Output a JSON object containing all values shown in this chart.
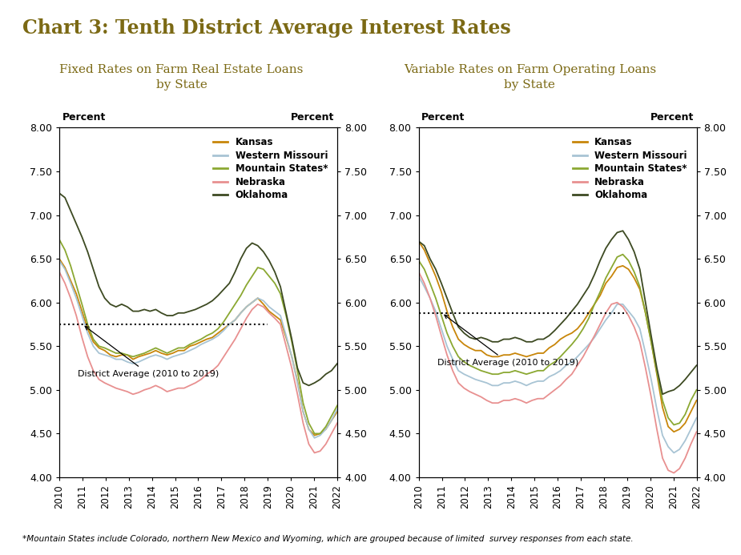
{
  "title": "Chart 3: Tenth District Average Interest Rates",
  "title_color": "#7B6914",
  "subtitle_left": "Fixed Rates on Farm Real Estate Loans\nby State",
  "subtitle_right": "Variable Rates on Farm Operating Loans\nby State",
  "subtitle_color": "#7B6914",
  "footnote": "*Mountain States include Colorado, northern New Mexico and Wyoming, which are grouped because of limited  survey responses from each state.",
  "legend_labels": [
    "Kansas",
    "Western Missouri",
    "Mountain States*",
    "Nebraska",
    "Oklahoma"
  ],
  "line_colors": [
    "#C8860A",
    "#A8C4D4",
    "#8BA832",
    "#E89090",
    "#3D4A22"
  ],
  "district_avg_color": "#000000",
  "ylim": [
    4.0,
    8.0
  ],
  "yticks": [
    4.0,
    4.5,
    5.0,
    5.5,
    6.0,
    6.5,
    7.0,
    7.5,
    8.0
  ],
  "xlabel_years": [
    "2010",
    "2011",
    "2012",
    "2013",
    "2014",
    "2015",
    "2016",
    "2017",
    "2018",
    "2019",
    "2020",
    "2021",
    "2022"
  ],
  "fixed_rates": {
    "kansas": [
      6.5,
      6.4,
      6.25,
      6.1,
      5.9,
      5.7,
      5.55,
      5.48,
      5.45,
      5.4,
      5.38,
      5.4,
      5.4,
      5.35,
      5.38,
      5.4,
      5.42,
      5.45,
      5.42,
      5.4,
      5.42,
      5.45,
      5.45,
      5.5,
      5.52,
      5.55,
      5.58,
      5.6,
      5.65,
      5.7,
      5.75,
      5.8,
      5.88,
      5.95,
      6.0,
      6.05,
      5.98,
      5.9,
      5.85,
      5.8,
      5.6,
      5.38,
      5.1,
      4.75,
      4.55,
      4.48,
      4.5,
      4.55,
      4.65,
      4.75
    ],
    "western_missouri": [
      6.48,
      6.38,
      6.22,
      6.05,
      5.85,
      5.65,
      5.5,
      5.42,
      5.4,
      5.38,
      5.35,
      5.35,
      5.32,
      5.3,
      5.32,
      5.35,
      5.38,
      5.4,
      5.38,
      5.35,
      5.38,
      5.4,
      5.42,
      5.45,
      5.48,
      5.52,
      5.55,
      5.58,
      5.62,
      5.68,
      5.75,
      5.8,
      5.88,
      5.95,
      6.0,
      6.05,
      6.02,
      5.95,
      5.9,
      5.85,
      5.62,
      5.38,
      5.08,
      4.75,
      4.55,
      4.45,
      4.48,
      4.55,
      4.65,
      4.78
    ],
    "mountain_states": [
      6.72,
      6.6,
      6.42,
      6.2,
      5.98,
      5.75,
      5.58,
      5.5,
      5.48,
      5.45,
      5.42,
      5.42,
      5.4,
      5.38,
      5.4,
      5.42,
      5.45,
      5.48,
      5.45,
      5.42,
      5.45,
      5.48,
      5.48,
      5.52,
      5.55,
      5.58,
      5.62,
      5.65,
      5.7,
      5.78,
      5.88,
      5.98,
      6.08,
      6.2,
      6.3,
      6.4,
      6.38,
      6.3,
      6.22,
      6.1,
      5.85,
      5.55,
      5.22,
      4.85,
      4.62,
      4.5,
      4.5,
      4.58,
      4.7,
      4.82
    ],
    "nebraska": [
      6.35,
      6.22,
      6.05,
      5.85,
      5.6,
      5.38,
      5.22,
      5.12,
      5.08,
      5.05,
      5.02,
      5.0,
      4.98,
      4.95,
      4.97,
      5.0,
      5.02,
      5.05,
      5.02,
      4.98,
      5.0,
      5.02,
      5.02,
      5.05,
      5.08,
      5.12,
      5.18,
      5.22,
      5.28,
      5.38,
      5.48,
      5.58,
      5.7,
      5.82,
      5.92,
      5.98,
      5.95,
      5.88,
      5.82,
      5.75,
      5.5,
      5.25,
      4.95,
      4.62,
      4.38,
      4.28,
      4.3,
      4.38,
      4.5,
      4.62
    ],
    "oklahoma": [
      7.25,
      7.2,
      7.05,
      6.9,
      6.75,
      6.58,
      6.38,
      6.18,
      6.05,
      5.98,
      5.95,
      5.98,
      5.95,
      5.9,
      5.9,
      5.92,
      5.9,
      5.92,
      5.88,
      5.85,
      5.85,
      5.88,
      5.88,
      5.9,
      5.92,
      5.95,
      5.98,
      6.02,
      6.08,
      6.15,
      6.22,
      6.35,
      6.5,
      6.62,
      6.68,
      6.65,
      6.58,
      6.48,
      6.35,
      6.18,
      5.88,
      5.58,
      5.25,
      5.08,
      5.05,
      5.08,
      5.12,
      5.18,
      5.22,
      5.3
    ]
  },
  "variable_rates": {
    "kansas": [
      6.7,
      6.6,
      6.45,
      6.3,
      6.12,
      5.9,
      5.72,
      5.58,
      5.52,
      5.48,
      5.45,
      5.45,
      5.4,
      5.38,
      5.38,
      5.4,
      5.4,
      5.42,
      5.4,
      5.38,
      5.4,
      5.42,
      5.42,
      5.48,
      5.52,
      5.58,
      5.62,
      5.65,
      5.7,
      5.78,
      5.88,
      5.98,
      6.08,
      6.22,
      6.3,
      6.4,
      6.42,
      6.38,
      6.28,
      6.15,
      5.88,
      5.55,
      5.18,
      4.8,
      4.58,
      4.52,
      4.55,
      4.62,
      4.75,
      4.88
    ],
    "western_missouri": [
      6.3,
      6.18,
      6.05,
      5.9,
      5.7,
      5.5,
      5.35,
      5.22,
      5.18,
      5.15,
      5.12,
      5.1,
      5.08,
      5.05,
      5.05,
      5.08,
      5.08,
      5.1,
      5.08,
      5.05,
      5.08,
      5.1,
      5.1,
      5.15,
      5.18,
      5.22,
      5.28,
      5.32,
      5.38,
      5.45,
      5.52,
      5.6,
      5.7,
      5.8,
      5.88,
      5.98,
      5.98,
      5.9,
      5.82,
      5.7,
      5.42,
      5.12,
      4.78,
      4.48,
      4.35,
      4.28,
      4.32,
      4.42,
      4.55,
      4.68
    ],
    "mountain_states": [
      6.48,
      6.38,
      6.22,
      6.05,
      5.85,
      5.65,
      5.5,
      5.38,
      5.32,
      5.28,
      5.25,
      5.22,
      5.2,
      5.18,
      5.18,
      5.2,
      5.2,
      5.22,
      5.2,
      5.18,
      5.2,
      5.22,
      5.22,
      5.28,
      5.32,
      5.38,
      5.45,
      5.52,
      5.6,
      5.7,
      5.82,
      5.98,
      6.12,
      6.28,
      6.4,
      6.52,
      6.55,
      6.48,
      6.35,
      6.18,
      5.88,
      5.55,
      5.2,
      4.88,
      4.68,
      4.6,
      4.62,
      4.72,
      4.88,
      5.0
    ],
    "nebraska": [
      6.35,
      6.22,
      6.05,
      5.85,
      5.62,
      5.4,
      5.22,
      5.08,
      5.02,
      4.98,
      4.95,
      4.92,
      4.88,
      4.85,
      4.85,
      4.88,
      4.88,
      4.9,
      4.88,
      4.85,
      4.88,
      4.9,
      4.9,
      4.95,
      5.0,
      5.05,
      5.12,
      5.18,
      5.28,
      5.38,
      5.5,
      5.62,
      5.75,
      5.88,
      5.98,
      6.0,
      5.95,
      5.85,
      5.72,
      5.55,
      5.25,
      4.92,
      4.55,
      4.22,
      4.08,
      4.05,
      4.1,
      4.22,
      4.38,
      4.52
    ],
    "oklahoma": [
      6.7,
      6.65,
      6.5,
      6.38,
      6.22,
      6.05,
      5.88,
      5.72,
      5.65,
      5.6,
      5.58,
      5.6,
      5.58,
      5.55,
      5.55,
      5.58,
      5.58,
      5.6,
      5.58,
      5.55,
      5.55,
      5.58,
      5.58,
      5.62,
      5.68,
      5.75,
      5.82,
      5.9,
      5.98,
      6.08,
      6.18,
      6.32,
      6.48,
      6.62,
      6.72,
      6.8,
      6.82,
      6.72,
      6.58,
      6.38,
      6.0,
      5.62,
      5.25,
      4.95,
      4.98,
      5.0,
      5.05,
      5.12,
      5.2,
      5.28
    ]
  },
  "district_avg_fixed": 5.75,
  "district_avg_variable": 5.88,
  "n_quarters": 50
}
